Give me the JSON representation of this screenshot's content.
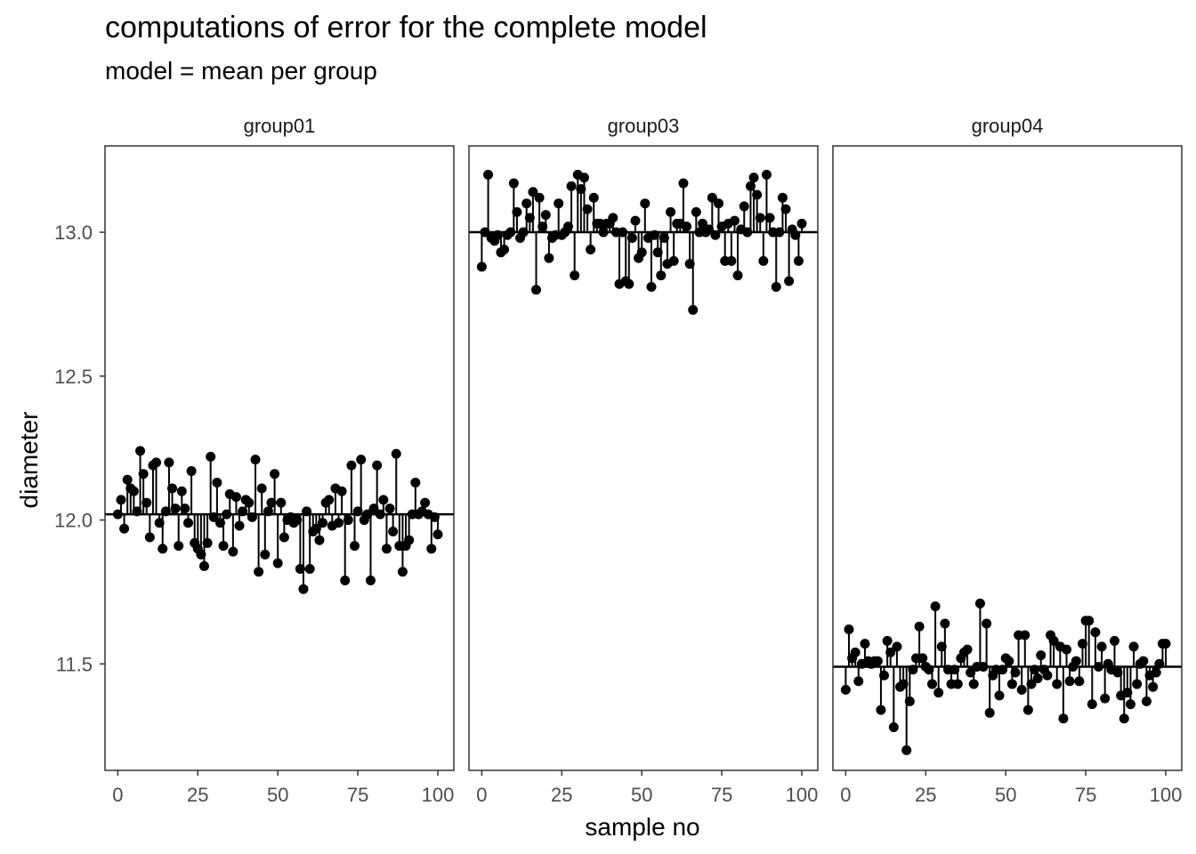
{
  "chart_data": {
    "type": "scatter",
    "title": "computations of error for the complete model",
    "subtitle": "model = mean per group",
    "xlabel": "sample no",
    "ylabel": "diameter",
    "xlim": [
      -4,
      105
    ],
    "ylim": [
      11.13,
      13.3
    ],
    "xticks": [
      0,
      25,
      50,
      75,
      100
    ],
    "yticks": [
      11.5,
      12.0,
      12.5,
      13.0
    ],
    "xtick_labels": [
      "0",
      "25",
      "50",
      "75",
      "100"
    ],
    "ytick_labels": [
      "11.5",
      "12.0",
      "12.5",
      "13.0"
    ],
    "grid": false,
    "facets": [
      {
        "name": "group01",
        "mean": 12.02,
        "values": [
          12.02,
          12.07,
          11.97,
          12.14,
          12.11,
          12.1,
          12.03,
          12.24,
          12.16,
          12.06,
          11.94,
          12.19,
          12.2,
          11.99,
          11.9,
          12.03,
          12.2,
          12.11,
          12.04,
          11.91,
          12.1,
          12.04,
          11.99,
          12.17,
          11.92,
          11.9,
          11.88,
          11.84,
          11.92,
          12.22,
          12.01,
          12.13,
          11.99,
          11.91,
          12.02,
          12.09,
          11.89,
          12.08,
          11.98,
          12.03,
          12.07,
          12.06,
          12.01,
          12.21,
          11.82,
          12.11,
          11.88,
          12.03,
          12.06,
          12.16,
          11.85,
          12.06,
          11.94,
          12.0,
          12.01,
          11.99,
          12.0,
          11.83,
          11.76,
          12.03,
          11.83,
          11.96,
          11.97,
          11.93,
          11.99,
          12.06,
          12.07,
          11.98,
          12.11,
          11.99,
          12.1,
          11.79,
          12.0,
          12.19,
          11.91,
          12.03,
          12.21,
          12.0,
          12.02,
          11.79,
          12.04,
          12.19,
          12.02,
          12.07,
          11.9,
          12.04,
          11.96,
          12.23,
          11.91,
          11.82,
          11.91,
          11.93,
          12.02,
          12.13,
          12.02,
          12.03,
          12.06,
          12.02,
          11.9,
          12.01,
          11.95
        ]
      },
      {
        "name": "group03",
        "mean": 13.0,
        "values": [
          12.88,
          13.0,
          13.2,
          12.98,
          12.97,
          12.99,
          12.93,
          12.94,
          12.99,
          13.0,
          13.17,
          13.07,
          12.98,
          13.0,
          13.1,
          13.05,
          13.14,
          12.8,
          13.12,
          13.02,
          13.06,
          12.91,
          12.98,
          12.99,
          13.1,
          12.99,
          13.0,
          13.02,
          13.16,
          12.85,
          13.2,
          13.15,
          13.19,
          13.08,
          12.94,
          13.12,
          13.03,
          13.03,
          13.0,
          13.03,
          13.03,
          13.05,
          13.0,
          12.82,
          13.0,
          12.83,
          12.82,
          12.98,
          13.04,
          12.91,
          12.93,
          13.1,
          12.98,
          12.81,
          12.99,
          12.93,
          12.85,
          12.98,
          12.89,
          13.07,
          12.9,
          13.03,
          13.03,
          13.17,
          13.02,
          12.89,
          12.73,
          13.07,
          13.0,
          13.03,
          13.0,
          13.01,
          13.12,
          12.99,
          13.1,
          13.02,
          12.9,
          13.03,
          12.9,
          13.04,
          12.85,
          13.01,
          13.09,
          13.0,
          13.16,
          13.19,
          13.13,
          13.05,
          12.9,
          13.2,
          13.05,
          13.0,
          12.81,
          13.0,
          13.12,
          13.08,
          12.83,
          13.01,
          12.99,
          12.9,
          13.03
        ]
      },
      {
        "name": "group04",
        "mean": 11.49,
        "values": [
          11.41,
          11.62,
          11.52,
          11.54,
          11.44,
          11.5,
          11.57,
          11.51,
          11.5,
          11.51,
          11.51,
          11.34,
          11.46,
          11.58,
          11.54,
          11.28,
          11.56,
          11.42,
          11.43,
          11.2,
          11.37,
          11.48,
          11.52,
          11.63,
          11.52,
          11.49,
          11.48,
          11.43,
          11.7,
          11.4,
          11.56,
          11.64,
          11.48,
          11.43,
          11.48,
          11.43,
          11.52,
          11.54,
          11.55,
          11.47,
          11.43,
          11.49,
          11.71,
          11.49,
          11.64,
          11.33,
          11.46,
          11.48,
          11.39,
          11.48,
          11.52,
          11.51,
          11.43,
          11.47,
          11.6,
          11.41,
          11.6,
          11.34,
          11.43,
          11.48,
          11.45,
          11.53,
          11.48,
          11.46,
          11.6,
          11.58,
          11.43,
          11.56,
          11.31,
          11.55,
          11.44,
          11.49,
          11.51,
          11.44,
          11.57,
          11.65,
          11.65,
          11.36,
          11.61,
          11.49,
          11.56,
          11.38,
          11.5,
          11.48,
          11.58,
          11.47,
          11.39,
          11.31,
          11.4,
          11.36,
          11.56,
          11.43,
          11.5,
          11.51,
          11.37,
          11.46,
          11.42,
          11.47,
          11.5,
          11.57,
          11.57
        ]
      }
    ]
  }
}
